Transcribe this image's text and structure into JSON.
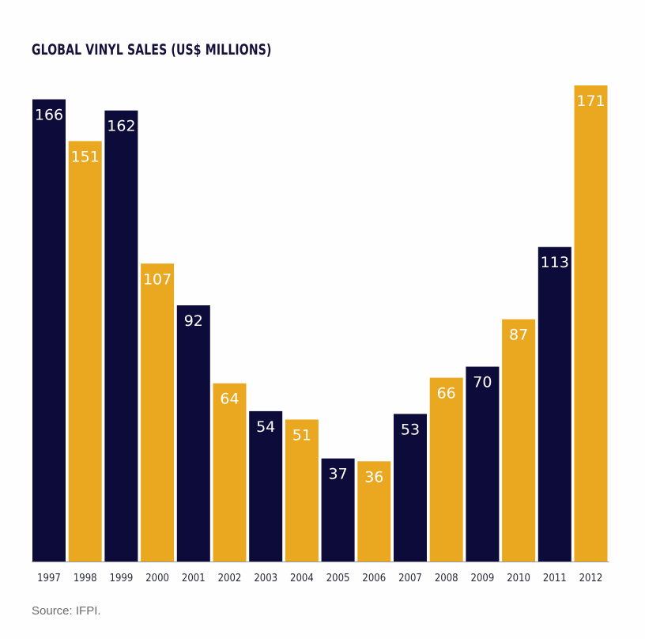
{
  "chart_data": {
    "type": "bar",
    "title": "GLOBAL VINYL SALES (US$ MILLIONS)",
    "categories": [
      "1997",
      "1998",
      "1999",
      "2000",
      "2001",
      "2002",
      "2003",
      "2004",
      "2005",
      "2006",
      "2007",
      "2008",
      "2009",
      "2010",
      "2011",
      "2012"
    ],
    "values": [
      166,
      151,
      162,
      107,
      92,
      64,
      54,
      51,
      37,
      36,
      53,
      66,
      70,
      87,
      113,
      171
    ],
    "ylim": [
      0,
      171
    ],
    "grid": false,
    "colors": [
      "#0d0b3a",
      "#e9a820"
    ],
    "color_pattern": [
      "dark",
      "gold",
      "dark",
      "gold",
      "dark",
      "gold",
      "dark",
      "gold",
      "dark",
      "gold",
      "dark",
      "gold",
      "dark",
      "gold",
      "dark",
      "gold"
    ]
  },
  "source": "Source: IFPI."
}
